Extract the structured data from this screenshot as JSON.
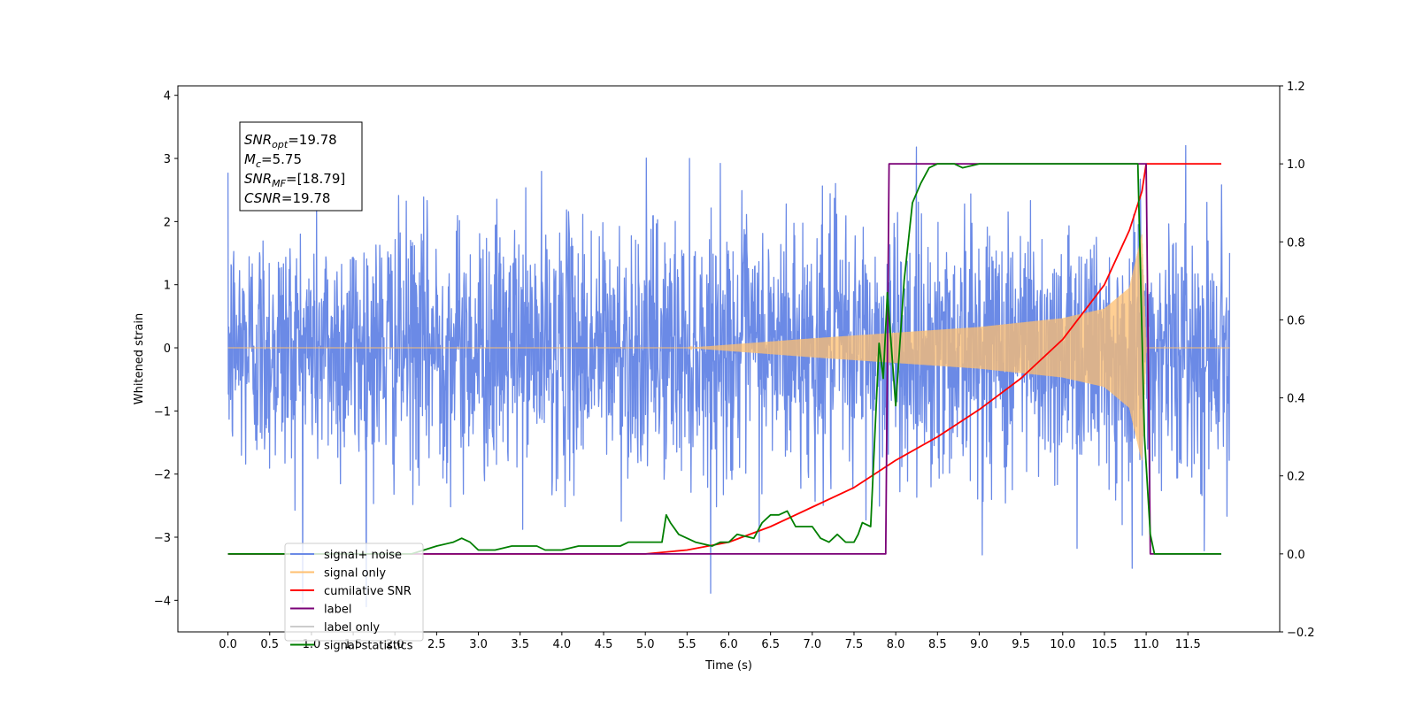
{
  "chart_data": {
    "type": "line",
    "xlabel": "Time (s)",
    "ylabel": "Whitened strain",
    "xlim": [
      -0.6,
      12.6
    ],
    "ylim_left": [
      -4.5,
      4.15
    ],
    "ylim_right": [
      -0.2,
      1.2
    ],
    "x_ticks": [
      "0.0",
      "0.5",
      "1.0",
      "1.5",
      "2.0",
      "2.5",
      "3.0",
      "3.5",
      "4.0",
      "4.5",
      "5.0",
      "5.5",
      "6.0",
      "6.5",
      "7.0",
      "7.5",
      "8.0",
      "8.5",
      "9.0",
      "9.5",
      "10.0",
      "10.5",
      "11.0",
      "11.5"
    ],
    "y_ticks_left": [
      "4",
      "3",
      "2",
      "1",
      "0",
      "−1",
      "−2",
      "−3",
      "−4"
    ],
    "y_ticks_right": [
      "1.2",
      "1.0",
      "0.8",
      "0.6",
      "0.4",
      "0.2",
      "0.0",
      "−0.2"
    ],
    "annotations": [
      {
        "sym": "SNR",
        "sub": "opt",
        "eq": "=19.78"
      },
      {
        "sym": "M",
        "sub": "c",
        "eq": "=5.75"
      },
      {
        "sym": "SNR",
        "sub": "MF",
        "eq": "=[18.79]"
      },
      {
        "sym": "CSNR",
        "sub": "",
        "eq": "=19.78"
      }
    ],
    "legend_position": "lower-left",
    "series": [
      {
        "name": "signal+ noise",
        "color": "#6b8ae6",
        "axis": "left",
        "noise_std": 1.0,
        "x_range": [
          0.0,
          12.0
        ]
      },
      {
        "name": "signal only",
        "color": "#ffbf6f",
        "axis": "left",
        "envelope_x": [
          5.5,
          6.0,
          7.0,
          8.0,
          9.0,
          10.0,
          10.5,
          10.8,
          10.95,
          11.0
        ],
        "envelope_y": [
          0.0,
          0.05,
          0.15,
          0.24,
          0.33,
          0.47,
          0.62,
          0.95,
          1.8,
          0.0
        ]
      },
      {
        "name": "cumilative SNR",
        "color": "#ff0000",
        "axis": "right",
        "x": [
          0.0,
          5.0,
          5.5,
          6.0,
          6.5,
          7.0,
          7.5,
          8.0,
          8.5,
          9.0,
          9.5,
          10.0,
          10.5,
          10.8,
          10.95,
          11.0,
          11.05,
          11.9
        ],
        "y": [
          0.0,
          0.0,
          0.01,
          0.03,
          0.07,
          0.12,
          0.17,
          0.24,
          0.3,
          0.37,
          0.45,
          0.55,
          0.69,
          0.83,
          0.93,
          1.0,
          1.0,
          1.0
        ]
      },
      {
        "name": "label",
        "color": "#7a0077",
        "axis": "right",
        "x": [
          0.0,
          7.88,
          7.92,
          11.0,
          11.05,
          11.9
        ],
        "y": [
          0.0,
          0.0,
          1.0,
          1.0,
          0.0,
          0.0
        ]
      },
      {
        "name": "label only",
        "color": "#cccccc",
        "axis": "right"
      },
      {
        "name": "signal statistics",
        "color": "#007f00",
        "axis": "right",
        "x": [
          0.0,
          2.2,
          2.5,
          2.7,
          2.8,
          2.9,
          3.0,
          3.2,
          3.4,
          3.6,
          3.7,
          3.8,
          4.0,
          4.2,
          4.4,
          4.5,
          4.7,
          4.8,
          5.0,
          5.1,
          5.2,
          5.25,
          5.3,
          5.4,
          5.6,
          5.8,
          5.9,
          6.0,
          6.1,
          6.3,
          6.4,
          6.5,
          6.6,
          6.7,
          6.8,
          7.0,
          7.1,
          7.2,
          7.3,
          7.4,
          7.5,
          7.55,
          7.6,
          7.7,
          7.8,
          7.85,
          7.9,
          8.0,
          8.1,
          8.2,
          8.3,
          8.4,
          8.5,
          8.6,
          8.7,
          8.8,
          9.0,
          9.5,
          10.0,
          10.9,
          10.98,
          11.05,
          11.1,
          11.2,
          11.9
        ],
        "y": [
          0.0,
          0.0,
          0.02,
          0.03,
          0.04,
          0.03,
          0.01,
          0.01,
          0.02,
          0.02,
          0.02,
          0.01,
          0.01,
          0.02,
          0.02,
          0.02,
          0.02,
          0.03,
          0.03,
          0.03,
          0.03,
          0.1,
          0.08,
          0.05,
          0.03,
          0.02,
          0.03,
          0.03,
          0.05,
          0.04,
          0.08,
          0.1,
          0.1,
          0.11,
          0.07,
          0.07,
          0.04,
          0.03,
          0.05,
          0.03,
          0.03,
          0.05,
          0.08,
          0.07,
          0.54,
          0.45,
          0.67,
          0.38,
          0.7,
          0.9,
          0.95,
          0.99,
          1.0,
          1.0,
          1.0,
          0.99,
          1.0,
          1.0,
          1.0,
          1.0,
          0.3,
          0.05,
          0.0,
          0.0,
          0.0
        ]
      }
    ]
  }
}
